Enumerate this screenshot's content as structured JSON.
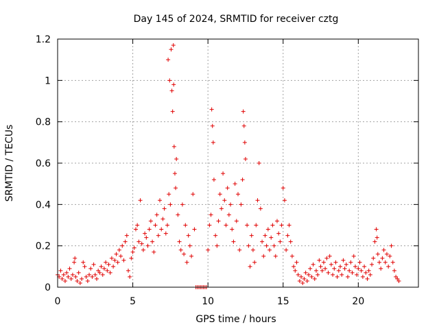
{
  "chart_data": {
    "type": "scatter",
    "title": "Day 145 of 2024, SRMTID for receiver cztg",
    "xlabel": "GPS time / hours",
    "ylabel": "SRMTID / TECUs",
    "xlim": [
      0,
      24
    ],
    "ylim": [
      0,
      1.2
    ],
    "xticks": [
      0,
      5,
      10,
      15,
      20
    ],
    "xtick_labels": [
      "0",
      "5",
      "10",
      "15",
      "20"
    ],
    "yticks": [
      0,
      0.2,
      0.4,
      0.6,
      0.8,
      1.0,
      1.2
    ],
    "ytick_labels": [
      "0",
      "0.2",
      "0.4",
      "0.6",
      "0.8",
      "1",
      "1.2"
    ],
    "grid": true,
    "marker": "+",
    "color": "#e00000",
    "series": [
      {
        "name": "SRMTID",
        "points": [
          [
            0.0,
            0.06
          ],
          [
            0.1,
            0.05
          ],
          [
            0.2,
            0.08
          ],
          [
            0.3,
            0.04
          ],
          [
            0.4,
            0.06
          ],
          [
            0.5,
            0.03
          ],
          [
            0.6,
            0.07
          ],
          [
            0.7,
            0.05
          ],
          [
            0.8,
            0.09
          ],
          [
            0.9,
            0.04
          ],
          [
            1.0,
            0.06
          ],
          [
            1.1,
            0.12
          ],
          [
            1.15,
            0.14
          ],
          [
            1.2,
            0.05
          ],
          [
            1.3,
            0.03
          ],
          [
            1.4,
            0.07
          ],
          [
            1.5,
            0.02
          ],
          [
            1.6,
            0.04
          ],
          [
            1.7,
            0.12
          ],
          [
            1.8,
            0.1
          ],
          [
            1.9,
            0.05
          ],
          [
            2.0,
            0.03
          ],
          [
            2.1,
            0.06
          ],
          [
            2.2,
            0.09
          ],
          [
            2.3,
            0.05
          ],
          [
            2.4,
            0.11
          ],
          [
            2.5,
            0.06
          ],
          [
            2.6,
            0.04
          ],
          [
            2.7,
            0.08
          ],
          [
            2.8,
            0.07
          ],
          [
            2.9,
            0.1
          ],
          [
            3.0,
            0.06
          ],
          [
            3.1,
            0.09
          ],
          [
            3.2,
            0.12
          ],
          [
            3.3,
            0.08
          ],
          [
            3.4,
            0.11
          ],
          [
            3.5,
            0.07
          ],
          [
            3.6,
            0.14
          ],
          [
            3.7,
            0.1
          ],
          [
            3.8,
            0.13
          ],
          [
            3.9,
            0.16
          ],
          [
            4.0,
            0.12
          ],
          [
            4.1,
            0.18
          ],
          [
            4.2,
            0.15
          ],
          [
            4.3,
            0.2
          ],
          [
            4.4,
            0.13
          ],
          [
            4.5,
            0.22
          ],
          [
            4.6,
            0.25
          ],
          [
            4.7,
            0.08
          ],
          [
            4.8,
            0.05
          ],
          [
            4.9,
            0.14
          ],
          [
            5.0,
            0.17
          ],
          [
            5.1,
            0.19
          ],
          [
            5.2,
            0.28
          ],
          [
            5.3,
            0.3
          ],
          [
            5.4,
            0.22
          ],
          [
            5.5,
            0.42
          ],
          [
            5.6,
            0.21
          ],
          [
            5.7,
            0.18
          ],
          [
            5.8,
            0.26
          ],
          [
            5.9,
            0.24
          ],
          [
            6.0,
            0.2
          ],
          [
            6.1,
            0.28
          ],
          [
            6.2,
            0.32
          ],
          [
            6.3,
            0.22
          ],
          [
            6.4,
            0.17
          ],
          [
            6.5,
            0.3
          ],
          [
            6.6,
            0.35
          ],
          [
            6.7,
            0.25
          ],
          [
            6.8,
            0.42
          ],
          [
            6.9,
            0.28
          ],
          [
            7.0,
            0.33
          ],
          [
            7.1,
            0.38
          ],
          [
            7.2,
            0.26
          ],
          [
            7.3,
            0.3
          ],
          [
            7.35,
            1.1
          ],
          [
            7.4,
            0.45
          ],
          [
            7.45,
            1.0
          ],
          [
            7.5,
            0.4
          ],
          [
            7.55,
            1.15
          ],
          [
            7.6,
            0.95
          ],
          [
            7.65,
            0.85
          ],
          [
            7.7,
            1.17
          ],
          [
            7.72,
            0.98
          ],
          [
            7.75,
            0.68
          ],
          [
            7.8,
            0.55
          ],
          [
            7.85,
            0.48
          ],
          [
            7.9,
            0.62
          ],
          [
            8.0,
            0.35
          ],
          [
            8.1,
            0.22
          ],
          [
            8.2,
            0.18
          ],
          [
            8.3,
            0.4
          ],
          [
            8.4,
            0.16
          ],
          [
            8.5,
            0.3
          ],
          [
            8.6,
            0.12
          ],
          [
            8.7,
            0.25
          ],
          [
            8.8,
            0.2
          ],
          [
            8.9,
            0.15
          ],
          [
            9.0,
            0.45
          ],
          [
            9.1,
            0.28
          ],
          [
            9.2,
            0.0
          ],
          [
            9.3,
            0.0
          ],
          [
            9.4,
            0.0
          ],
          [
            9.5,
            0.0
          ],
          [
            9.6,
            0.0
          ],
          [
            9.7,
            0.0
          ],
          [
            9.8,
            0.0
          ],
          [
            9.9,
            0.0
          ],
          [
            10.0,
            0.18
          ],
          [
            10.1,
            0.3
          ],
          [
            10.2,
            0.35
          ],
          [
            10.25,
            0.86
          ],
          [
            10.3,
            0.78
          ],
          [
            10.35,
            0.7
          ],
          [
            10.4,
            0.52
          ],
          [
            10.5,
            0.25
          ],
          [
            10.6,
            0.2
          ],
          [
            10.7,
            0.32
          ],
          [
            10.8,
            0.45
          ],
          [
            10.9,
            0.38
          ],
          [
            11.0,
            0.55
          ],
          [
            11.1,
            0.42
          ],
          [
            11.2,
            0.3
          ],
          [
            11.3,
            0.48
          ],
          [
            11.4,
            0.35
          ],
          [
            11.5,
            0.4
          ],
          [
            11.6,
            0.28
          ],
          [
            11.7,
            0.22
          ],
          [
            11.8,
            0.5
          ],
          [
            11.9,
            0.32
          ],
          [
            12.0,
            0.45
          ],
          [
            12.1,
            0.18
          ],
          [
            12.2,
            0.4
          ],
          [
            12.3,
            0.52
          ],
          [
            12.35,
            0.85
          ],
          [
            12.4,
            0.78
          ],
          [
            12.45,
            0.7
          ],
          [
            12.5,
            0.62
          ],
          [
            12.6,
            0.3
          ],
          [
            12.7,
            0.2
          ],
          [
            12.8,
            0.1
          ],
          [
            12.9,
            0.25
          ],
          [
            13.0,
            0.18
          ],
          [
            13.1,
            0.12
          ],
          [
            13.2,
            0.3
          ],
          [
            13.3,
            0.42
          ],
          [
            13.4,
            0.6
          ],
          [
            13.5,
            0.38
          ],
          [
            13.6,
            0.22
          ],
          [
            13.7,
            0.15
          ],
          [
            13.8,
            0.25
          ],
          [
            13.9,
            0.2
          ],
          [
            14.0,
            0.28
          ],
          [
            14.1,
            0.18
          ],
          [
            14.2,
            0.24
          ],
          [
            14.3,
            0.3
          ],
          [
            14.4,
            0.2
          ],
          [
            14.5,
            0.15
          ],
          [
            14.6,
            0.32
          ],
          [
            14.7,
            0.26
          ],
          [
            14.8,
            0.22
          ],
          [
            14.9,
            0.3
          ],
          [
            15.0,
            0.48
          ],
          [
            15.1,
            0.42
          ],
          [
            15.2,
            0.18
          ],
          [
            15.3,
            0.25
          ],
          [
            15.4,
            0.3
          ],
          [
            15.5,
            0.22
          ],
          [
            15.6,
            0.15
          ],
          [
            15.7,
            0.1
          ],
          [
            15.8,
            0.08
          ],
          [
            15.9,
            0.12
          ],
          [
            16.0,
            0.06
          ],
          [
            16.1,
            0.03
          ],
          [
            16.2,
            0.05
          ],
          [
            16.3,
            0.02
          ],
          [
            16.4,
            0.04
          ],
          [
            16.5,
            0.07
          ],
          [
            16.6,
            0.03
          ],
          [
            16.7,
            0.06
          ],
          [
            16.8,
            0.09
          ],
          [
            16.9,
            0.05
          ],
          [
            17.0,
            0.11
          ],
          [
            17.1,
            0.04
          ],
          [
            17.2,
            0.08
          ],
          [
            17.3,
            0.06
          ],
          [
            17.4,
            0.13
          ],
          [
            17.5,
            0.1
          ],
          [
            17.6,
            0.08
          ],
          [
            17.7,
            0.12
          ],
          [
            17.8,
            0.09
          ],
          [
            17.9,
            0.14
          ],
          [
            18.0,
            0.07
          ],
          [
            18.1,
            0.15
          ],
          [
            18.2,
            0.11
          ],
          [
            18.3,
            0.06
          ],
          [
            18.4,
            0.09
          ],
          [
            18.5,
            0.12
          ],
          [
            18.6,
            0.05
          ],
          [
            18.7,
            0.08
          ],
          [
            18.8,
            0.1
          ],
          [
            18.9,
            0.06
          ],
          [
            19.0,
            0.13
          ],
          [
            19.1,
            0.09
          ],
          [
            19.2,
            0.11
          ],
          [
            19.3,
            0.05
          ],
          [
            19.4,
            0.08
          ],
          [
            19.5,
            0.12
          ],
          [
            19.6,
            0.07
          ],
          [
            19.7,
            0.15
          ],
          [
            19.8,
            0.1
          ],
          [
            19.9,
            0.06
          ],
          [
            20.0,
            0.09
          ],
          [
            20.1,
            0.12
          ],
          [
            20.2,
            0.08
          ],
          [
            20.3,
            0.05
          ],
          [
            20.4,
            0.1
          ],
          [
            20.5,
            0.07
          ],
          [
            20.6,
            0.04
          ],
          [
            20.7,
            0.08
          ],
          [
            20.8,
            0.06
          ],
          [
            20.9,
            0.11
          ],
          [
            21.0,
            0.14
          ],
          [
            21.1,
            0.22
          ],
          [
            21.2,
            0.28
          ],
          [
            21.25,
            0.24
          ],
          [
            21.3,
            0.16
          ],
          [
            21.4,
            0.12
          ],
          [
            21.5,
            0.09
          ],
          [
            21.6,
            0.14
          ],
          [
            21.7,
            0.18
          ],
          [
            21.8,
            0.12
          ],
          [
            21.9,
            0.16
          ],
          [
            22.0,
            0.1
          ],
          [
            22.1,
            0.15
          ],
          [
            22.2,
            0.2
          ],
          [
            22.3,
            0.12
          ],
          [
            22.4,
            0.08
          ],
          [
            22.5,
            0.05
          ],
          [
            22.6,
            0.04
          ],
          [
            22.7,
            0.03
          ]
        ]
      }
    ]
  }
}
